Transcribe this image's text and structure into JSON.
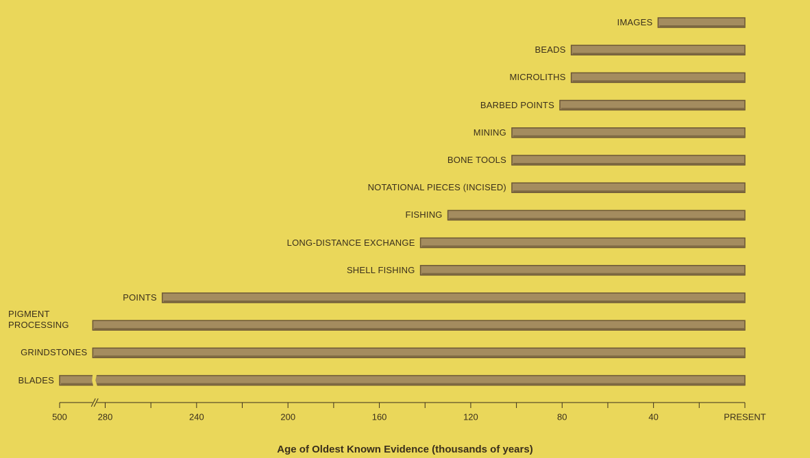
{
  "chart_data": {
    "type": "bar",
    "orientation": "horizontal",
    "categories": [
      "IMAGES",
      "BEADS",
      "MICROLITHS",
      "BARBED POINTS",
      "MINING",
      "BONE TOOLS",
      "NOTATIONAL PIECES (INCISED)",
      "FISHING",
      "LONG-DISTANCE EXCHANGE",
      "SHELL FISHING",
      "POINTS",
      "PIGMENT PROCESSING",
      "GRINDSTONES",
      "BLADES"
    ],
    "values": [
      38,
      76,
      76,
      81,
      102,
      102,
      102,
      130,
      142,
      142,
      255,
      340,
      340,
      500
    ],
    "color": "#a48c5f",
    "xlim": [
      500,
      0
    ],
    "axis_break": [
      280,
      500
    ],
    "xticks": [
      500,
      280,
      240,
      200,
      160,
      120,
      80,
      40,
      {
        "value": 0,
        "label": "PRESENT"
      }
    ],
    "xminorticks": [
      260,
      220,
      180,
      140,
      100,
      60,
      20
    ],
    "xlabel": "Age of Oldest Known Evidence (thousands of years)"
  }
}
